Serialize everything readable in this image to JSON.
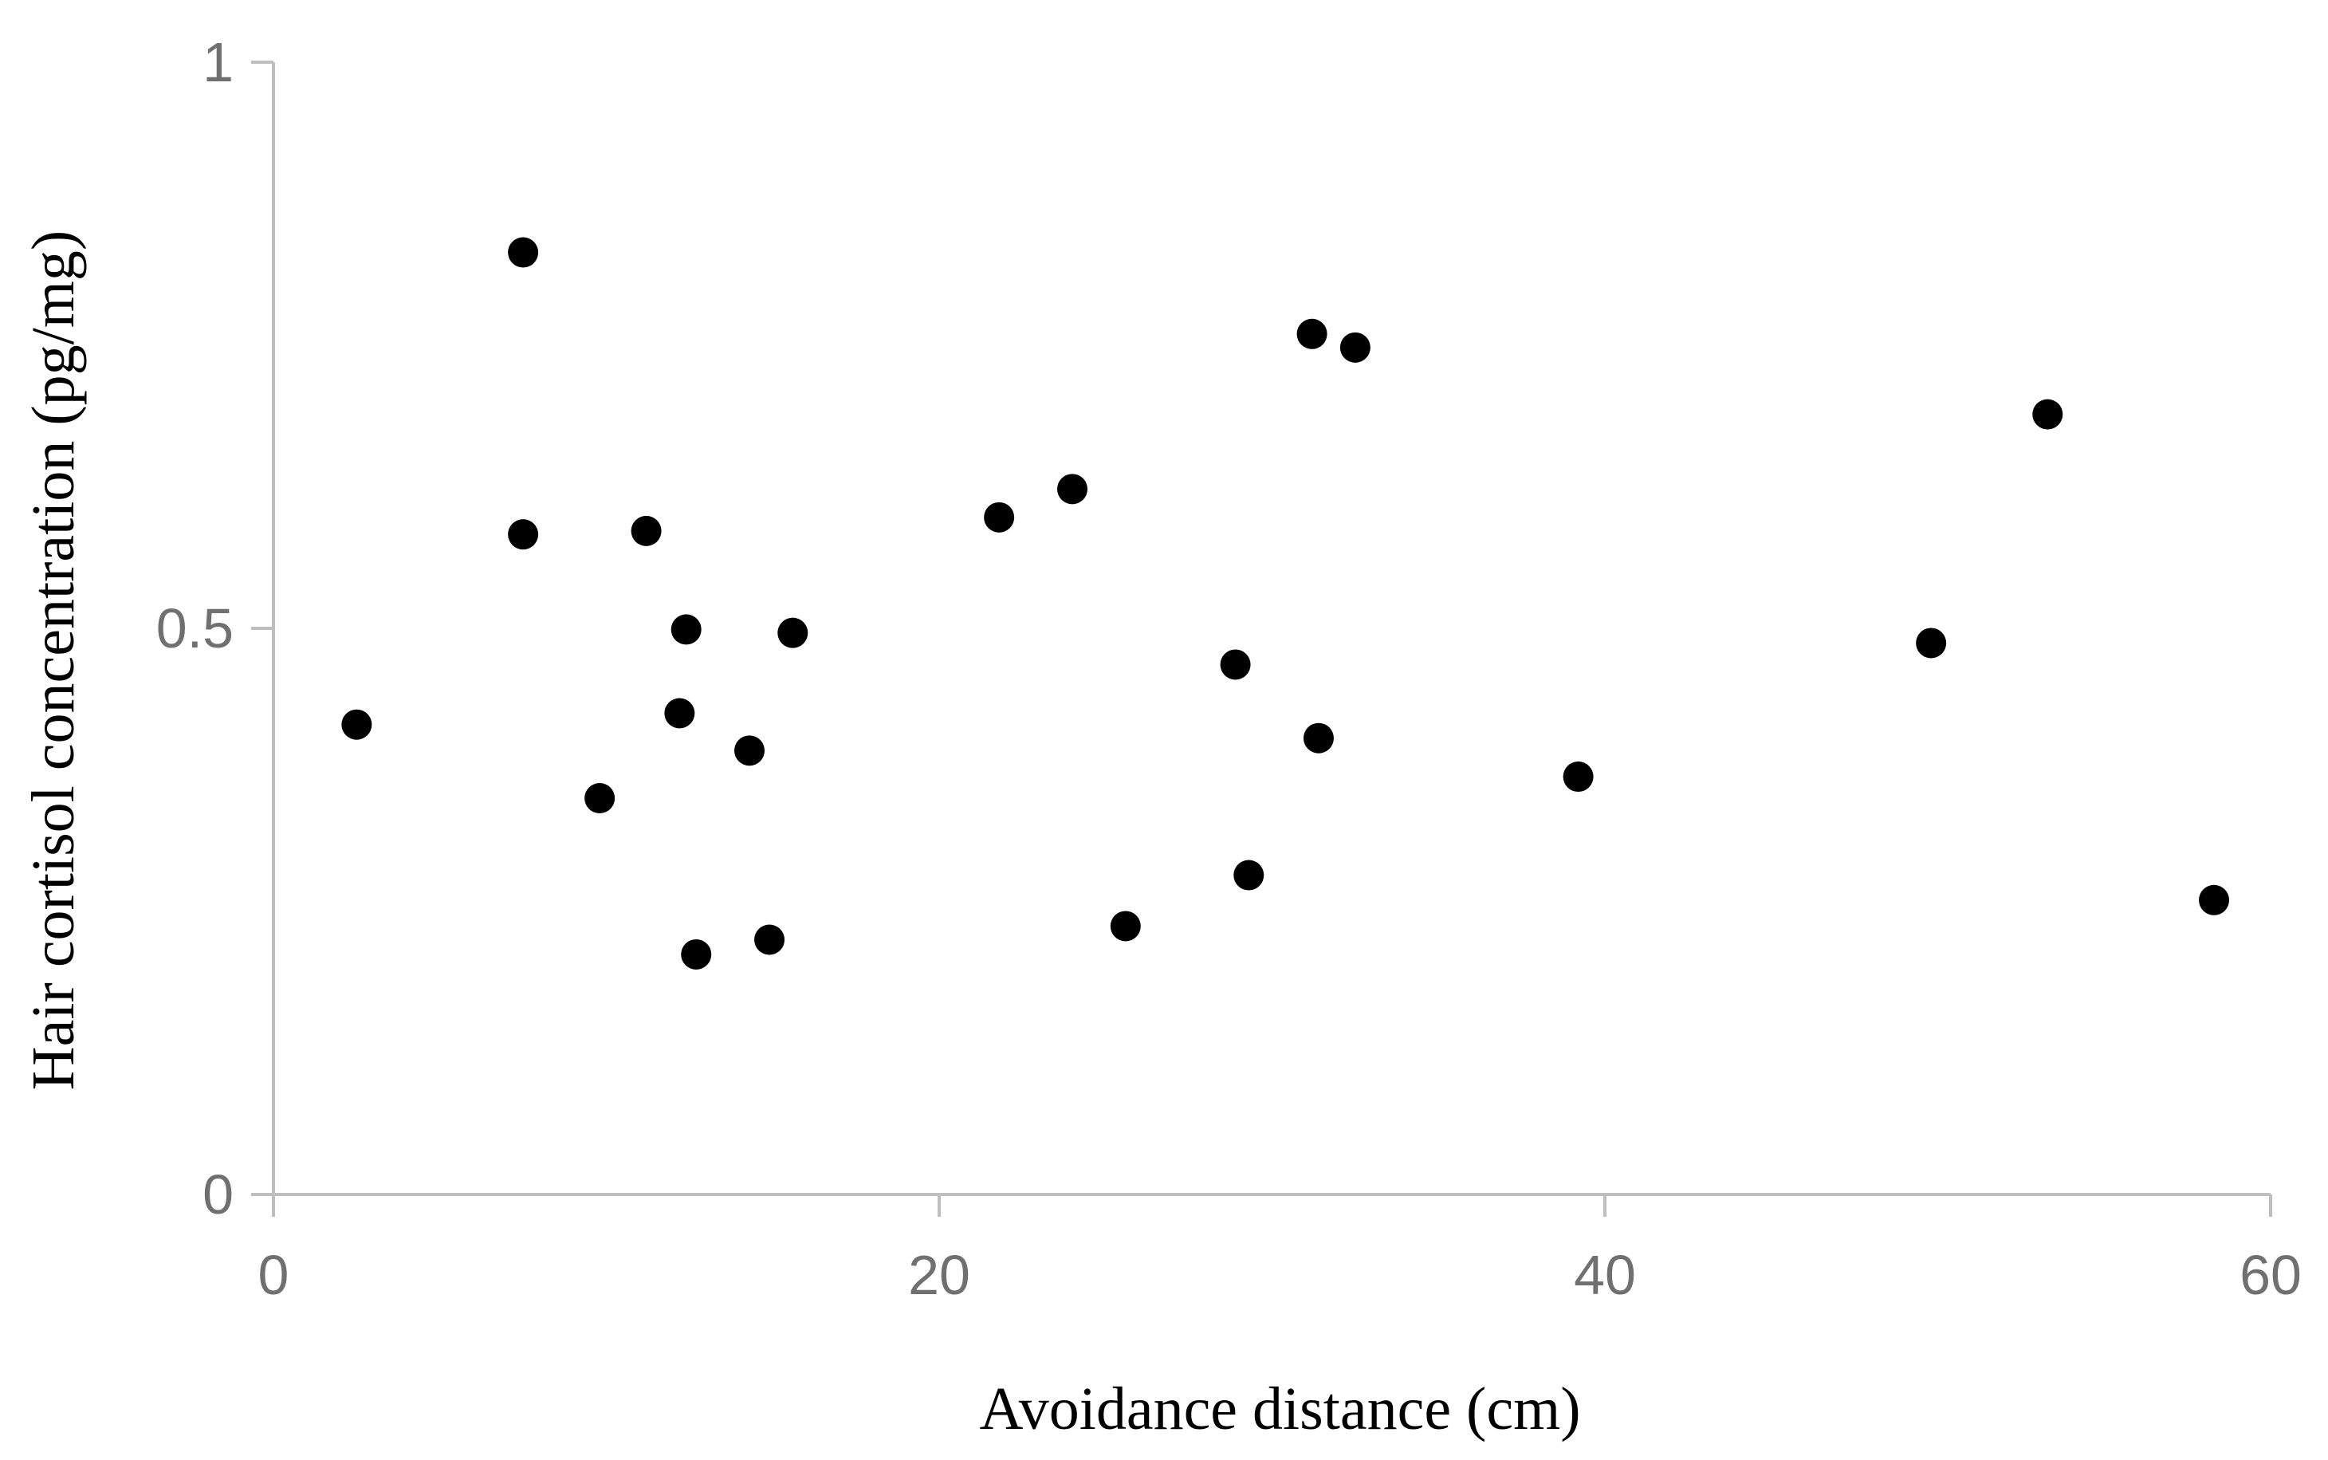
{
  "chart_data": {
    "type": "scatter",
    "title": "",
    "xlabel": "Avoidance distance (cm)",
    "ylabel": "Hair cortisol concentration  (pg/mg)",
    "xlim": [
      0,
      60
    ],
    "ylim": [
      0,
      1
    ],
    "x_ticks": [
      0,
      20,
      40,
      60
    ],
    "x_tick_labels": [
      "0",
      "20",
      "40",
      "60"
    ],
    "y_ticks": [
      0,
      0.5,
      1
    ],
    "y_tick_labels": [
      "0",
      "0.5",
      "1"
    ],
    "grid": false,
    "legend": "none",
    "colors": {
      "marker": "#000000",
      "axis": "#bfbfbf",
      "tick_label": "#707070",
      "axis_title": "#000000"
    },
    "series": [
      {
        "marker": "circle",
        "points": [
          {
            "x": 2.5,
            "y": 0.415
          },
          {
            "x": 7.5,
            "y": 0.832
          },
          {
            "x": 7.5,
            "y": 0.583
          },
          {
            "x": 9.8,
            "y": 0.35
          },
          {
            "x": 11.2,
            "y": 0.586
          },
          {
            "x": 12.2,
            "y": 0.425
          },
          {
            "x": 12.4,
            "y": 0.499
          },
          {
            "x": 12.7,
            "y": 0.212
          },
          {
            "x": 14.3,
            "y": 0.392
          },
          {
            "x": 14.9,
            "y": 0.225
          },
          {
            "x": 15.6,
            "y": 0.496
          },
          {
            "x": 21.8,
            "y": 0.598
          },
          {
            "x": 24.0,
            "y": 0.623
          },
          {
            "x": 25.6,
            "y": 0.237
          },
          {
            "x": 28.9,
            "y": 0.468
          },
          {
            "x": 29.3,
            "y": 0.282
          },
          {
            "x": 31.2,
            "y": 0.76
          },
          {
            "x": 31.4,
            "y": 0.403
          },
          {
            "x": 32.5,
            "y": 0.748
          },
          {
            "x": 39.2,
            "y": 0.369
          },
          {
            "x": 49.8,
            "y": 0.487
          },
          {
            "x": 53.3,
            "y": 0.689
          },
          {
            "x": 58.3,
            "y": 0.26
          }
        ]
      }
    ]
  }
}
